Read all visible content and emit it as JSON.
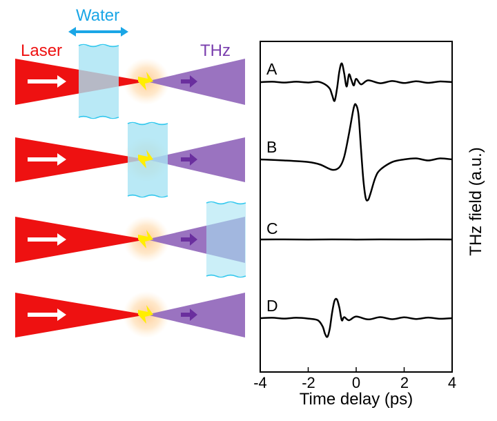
{
  "schematic": {
    "laser_label": "Laser",
    "water_label": "Water",
    "thz_label": "THz",
    "colors": {
      "laser": "#ee1111",
      "thz": "#9a73c0",
      "water": "#a8e4f4",
      "water_edge": "#33c8ee",
      "water_text": "#1aa6e6",
      "glow": "#ffc890",
      "spark": "#ffee00",
      "thz_arrow": "#6a2f9e"
    },
    "configs": [
      {
        "id": "A",
        "water_position": "before-focus"
      },
      {
        "id": "B",
        "water_position": "at-focus"
      },
      {
        "id": "C",
        "water_position": "after-focus"
      },
      {
        "id": "D",
        "water_position": "none"
      }
    ]
  },
  "chart_data": {
    "type": "line",
    "xlabel": "Time delay (ps)",
    "ylabel": "THz field (a.u.)",
    "xlim": [
      -4,
      4
    ],
    "xticks": [
      "-4",
      "-2",
      "0",
      "2",
      "4"
    ],
    "xtick_values": [
      -4,
      -2,
      0,
      2,
      4
    ],
    "series": [
      {
        "name": "A",
        "x": [
          -4,
          -3.5,
          -3,
          -2.5,
          -2,
          -1.6,
          -1.3,
          -1.1,
          -1.0,
          -0.9,
          -0.8,
          -0.7,
          -0.6,
          -0.5,
          -0.4,
          -0.3,
          -0.2,
          -0.1,
          0,
          0.2,
          0.5,
          1,
          1.5,
          2,
          2.5,
          3,
          3.5,
          4
        ],
        "y": [
          0,
          0.02,
          -0.02,
          0.02,
          -0.02,
          0.02,
          -0.1,
          -0.3,
          -0.6,
          -0.85,
          -0.3,
          0.5,
          0.85,
          0.4,
          -0.2,
          0.35,
          0.1,
          -0.15,
          0.15,
          -0.1,
          0.08,
          -0.05,
          0.05,
          -0.04,
          0.04,
          -0.03,
          0.03,
          0
        ]
      },
      {
        "name": "B",
        "x": [
          -4,
          -3,
          -2,
          -1.5,
          -1,
          -0.7,
          -0.5,
          -0.3,
          -0.1,
          0,
          0.1,
          0.2,
          0.3,
          0.4,
          0.5,
          0.6,
          0.8,
          1,
          1.5,
          2,
          2.5,
          3,
          3.5,
          4
        ],
        "y": [
          0,
          -0.02,
          -0.05,
          -0.1,
          -0.2,
          -0.15,
          0.05,
          0.5,
          1.0,
          1.05,
          0.85,
          0.2,
          -0.4,
          -0.75,
          -0.78,
          -0.65,
          -0.35,
          -0.2,
          -0.05,
          0,
          0.02,
          -0.02,
          0.02,
          0
        ]
      },
      {
        "name": "C",
        "x": [
          -4,
          -3,
          -2,
          -1,
          0,
          1,
          2,
          3,
          4
        ],
        "y": [
          0,
          0.01,
          -0.01,
          0.01,
          -0.01,
          0.01,
          0,
          0.01,
          0
        ]
      },
      {
        "name": "D",
        "x": [
          -4,
          -3.5,
          -3,
          -2.5,
          -2,
          -1.6,
          -1.4,
          -1.3,
          -1.2,
          -1.1,
          -1.0,
          -0.9,
          -0.8,
          -0.7,
          -0.6,
          -0.5,
          -0.3,
          0,
          0.5,
          1,
          1.5,
          2,
          2.5,
          3,
          3.5,
          4
        ],
        "y": [
          0,
          0.02,
          -0.02,
          0.02,
          -0.02,
          -0.1,
          -0.4,
          -0.75,
          -0.9,
          -0.5,
          0.3,
          0.85,
          0.9,
          0.5,
          -0.1,
          0.05,
          -0.1,
          0.08,
          -0.06,
          0.05,
          -0.05,
          0.04,
          -0.04,
          0.03,
          -0.03,
          0
        ]
      }
    ],
    "grid": false,
    "legend": "none"
  }
}
